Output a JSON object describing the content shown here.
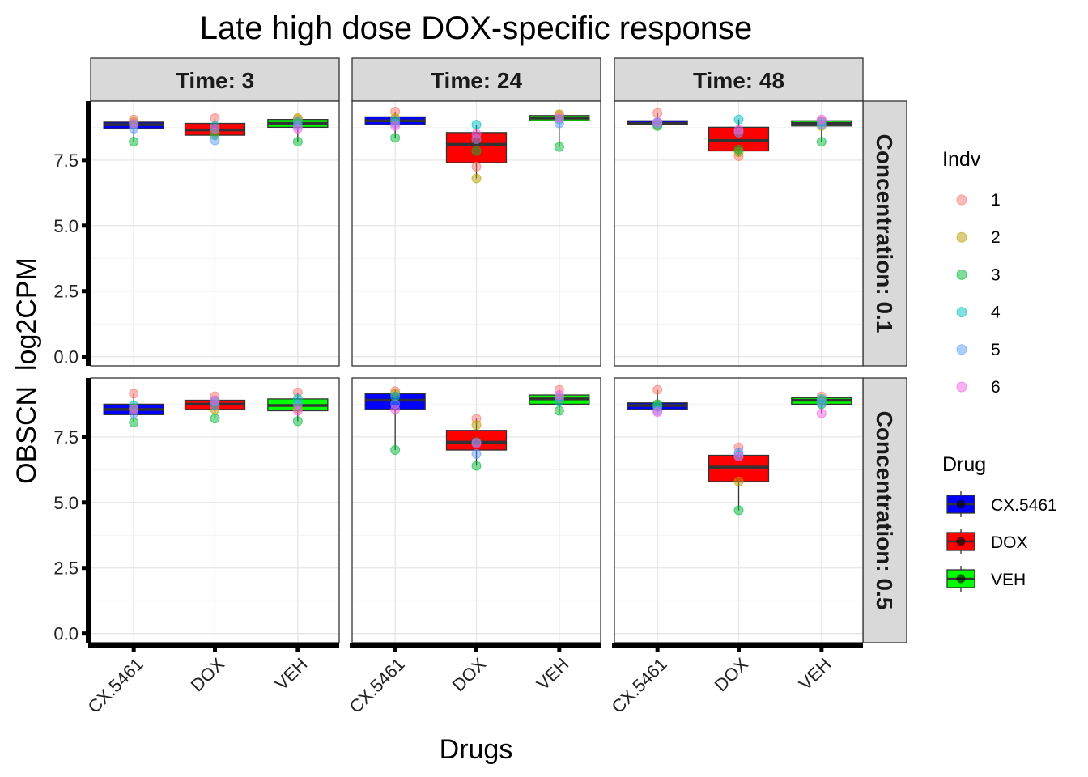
{
  "chart_data": {
    "type": "box",
    "title": "Late high dose DOX-specific response",
    "xlabel": "Drugs",
    "ylabel": "OBSCN  log2CPM",
    "categories": [
      "CX.5461",
      "DOX",
      "VEH"
    ],
    "y_ticks": [
      "0.0",
      "2.5",
      "5.0",
      "7.5"
    ],
    "ylim": [
      -0.35,
      9.75
    ],
    "grid": true,
    "col_facet": {
      "values": [
        "Time: 3",
        "Time: 24",
        "Time: 48"
      ]
    },
    "row_facet": {
      "values": [
        "Concentration: 0.1",
        "Concentration: 0.5"
      ]
    },
    "legend_drug": {
      "title": "Drug",
      "items": [
        {
          "label": "CX.5461",
          "color": "#0000ff"
        },
        {
          "label": "DOX",
          "color": "#ff0000"
        },
        {
          "label": "VEH",
          "color": "#00ff00"
        }
      ]
    },
    "legend_indv": {
      "title": "Indv",
      "items": [
        {
          "label": "1",
          "color": "#f8766d"
        },
        {
          "label": "2",
          "color": "#b79f00"
        },
        {
          "label": "3",
          "color": "#00ba38"
        },
        {
          "label": "4",
          "color": "#00bfc4"
        },
        {
          "label": "5",
          "color": "#619cff"
        },
        {
          "label": "6",
          "color": "#f564e3"
        }
      ]
    },
    "panels": [
      {
        "row": 0,
        "col": 0,
        "boxes": [
          {
            "drug": "CX.5461",
            "q1": 8.7,
            "median": 8.85,
            "q3": 8.95,
            "lo": 8.2,
            "hi": 9.05,
            "points": [
              9.05,
              8.95,
              8.2,
              8.85,
              8.7,
              8.9
            ]
          },
          {
            "drug": "DOX",
            "q1": 8.45,
            "median": 8.65,
            "q3": 8.9,
            "lo": 8.25,
            "hi": 9.1,
            "points": [
              9.1,
              8.55,
              8.45,
              8.8,
              8.25,
              8.7
            ]
          },
          {
            "drug": "VEH",
            "q1": 8.75,
            "median": 8.9,
            "q3": 9.05,
            "lo": 8.2,
            "hi": 9.1,
            "points": [
              9.05,
              9.1,
              8.2,
              8.95,
              8.8,
              8.7
            ]
          }
        ]
      },
      {
        "row": 0,
        "col": 1,
        "boxes": [
          {
            "drug": "CX.5461",
            "q1": 8.85,
            "median": 9.0,
            "q3": 9.15,
            "lo": 8.35,
            "hi": 9.35,
            "points": [
              9.35,
              9.1,
              8.35,
              9.0,
              8.9,
              8.8
            ]
          },
          {
            "drug": "DOX",
            "q1": 7.4,
            "median": 8.1,
            "q3": 8.55,
            "lo": 6.8,
            "hi": 8.85,
            "points": [
              7.25,
              6.8,
              7.85,
              8.85,
              8.3,
              8.5
            ]
          },
          {
            "drug": "VEH",
            "q1": 9.0,
            "median": 9.1,
            "q3": 9.2,
            "lo": 8.0,
            "hi": 9.25,
            "points": [
              9.2,
              9.25,
              8.0,
              9.05,
              8.9,
              9.1
            ]
          }
        ]
      },
      {
        "row": 0,
        "col": 2,
        "boxes": [
          {
            "drug": "CX.5461",
            "q1": 8.85,
            "median": 8.9,
            "q3": 9.0,
            "lo": 8.8,
            "hi": 9.3,
            "points": [
              9.3,
              8.85,
              8.8,
              8.95,
              8.9,
              8.95
            ]
          },
          {
            "drug": "DOX",
            "q1": 7.85,
            "median": 8.25,
            "q3": 8.75,
            "lo": 7.65,
            "hi": 9.05,
            "points": [
              7.65,
              7.8,
              7.9,
              9.05,
              8.55,
              8.65
            ]
          },
          {
            "drug": "VEH",
            "q1": 8.8,
            "median": 8.9,
            "q3": 9.0,
            "lo": 8.2,
            "hi": 9.05,
            "points": [
              9.0,
              8.8,
              8.2,
              8.95,
              8.85,
              9.05
            ]
          }
        ]
      },
      {
        "row": 1,
        "col": 0,
        "boxes": [
          {
            "drug": "CX.5461",
            "q1": 8.35,
            "median": 8.55,
            "q3": 8.75,
            "lo": 8.05,
            "hi": 9.15,
            "points": [
              9.15,
              8.6,
              8.05,
              8.7,
              8.4,
              8.55
            ]
          },
          {
            "drug": "DOX",
            "q1": 8.55,
            "median": 8.75,
            "q3": 8.9,
            "lo": 8.2,
            "hi": 9.05,
            "points": [
              9.05,
              8.55,
              8.2,
              8.85,
              8.7,
              8.9
            ]
          },
          {
            "drug": "VEH",
            "q1": 8.5,
            "median": 8.7,
            "q3": 8.95,
            "lo": 8.1,
            "hi": 9.2,
            "points": [
              9.2,
              8.6,
              8.1,
              8.95,
              8.75,
              8.5
            ]
          }
        ]
      },
      {
        "row": 1,
        "col": 1,
        "boxes": [
          {
            "drug": "CX.5461",
            "q1": 8.55,
            "median": 8.9,
            "q3": 9.15,
            "lo": 7.0,
            "hi": 9.3,
            "points": [
              9.25,
              9.15,
              7.0,
              9.05,
              8.75,
              8.55
            ]
          },
          {
            "drug": "DOX",
            "q1": 7.0,
            "median": 7.3,
            "q3": 7.75,
            "lo": 6.4,
            "hi": 8.2,
            "points": [
              8.2,
              7.95,
              6.4,
              7.3,
              6.85,
              7.25
            ]
          },
          {
            "drug": "VEH",
            "q1": 8.75,
            "median": 8.95,
            "q3": 9.1,
            "lo": 8.4,
            "hi": 9.3,
            "points": [
              9.3,
              8.95,
              8.5,
              8.85,
              9.0,
              9.1
            ]
          }
        ]
      },
      {
        "row": 1,
        "col": 2,
        "boxes": [
          {
            "drug": "CX.5461",
            "q1": 8.55,
            "median": 8.7,
            "q3": 8.8,
            "lo": 8.45,
            "hi": 9.3,
            "points": [
              9.3,
              8.7,
              8.75,
              8.65,
              8.5,
              8.45
            ]
          },
          {
            "drug": "DOX",
            "q1": 5.8,
            "median": 6.35,
            "q3": 6.8,
            "lo": 4.7,
            "hi": 7.1,
            "points": [
              7.1,
              5.8,
              4.7,
              6.8,
              6.9,
              6.75
            ]
          },
          {
            "drug": "VEH",
            "q1": 8.75,
            "median": 8.9,
            "q3": 9.0,
            "lo": 8.4,
            "hi": 9.1,
            "points": [
              9.05,
              8.9,
              8.75,
              8.95,
              8.8,
              8.4
            ]
          }
        ]
      }
    ]
  }
}
